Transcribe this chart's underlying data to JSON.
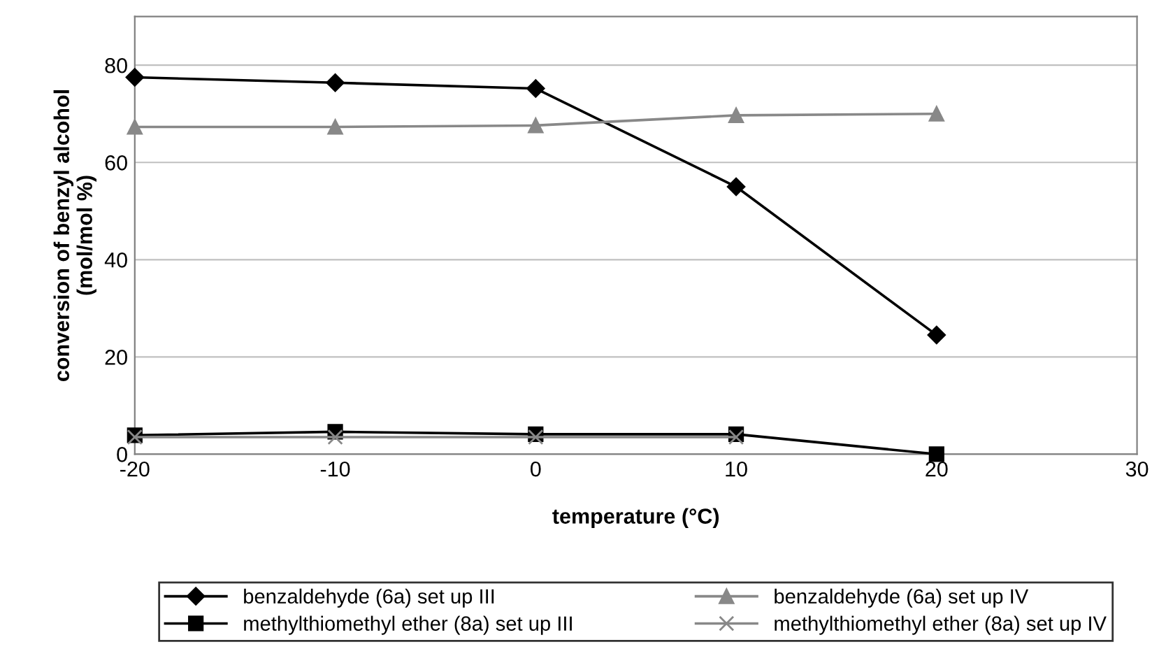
{
  "chart_data": {
    "type": "line",
    "xlabel": "temperature (°C)",
    "ylabel": "conversion of benzyl alcohol\n(mol/mol %)",
    "x": [
      -20,
      -10,
      0,
      10,
      20
    ],
    "series": [
      {
        "name": "benzaldehyde (6a) set up III",
        "color": "#000000",
        "marker": "diamond",
        "values": [
          77.5,
          76.4,
          75.2,
          55,
          24.5
        ]
      },
      {
        "name": "methylthiomethyl ether (8a) set up III",
        "color": "#000000",
        "marker": "square",
        "values": [
          3.9,
          4.6,
          4.1,
          4.1,
          0
        ]
      },
      {
        "name": "benzaldehyde (6a) set up IV",
        "color": "#888888",
        "marker": "triangle",
        "values": [
          67.3,
          67.3,
          67.6,
          69.7,
          70
        ]
      },
      {
        "name": "methylthiomethyl ether (8a) set up IV",
        "color": "#888888",
        "marker": "cross",
        "values": [
          3.5,
          3.5,
          3.5,
          3.5,
          null
        ]
      }
    ],
    "xlim": [
      -20,
      30
    ],
    "xticks": [
      -20,
      -10,
      0,
      10,
      20,
      30
    ],
    "ylim": [
      0,
      90
    ],
    "yticks": [
      0,
      20,
      40,
      60,
      80
    ],
    "grid": "y",
    "legend": "bottom"
  }
}
